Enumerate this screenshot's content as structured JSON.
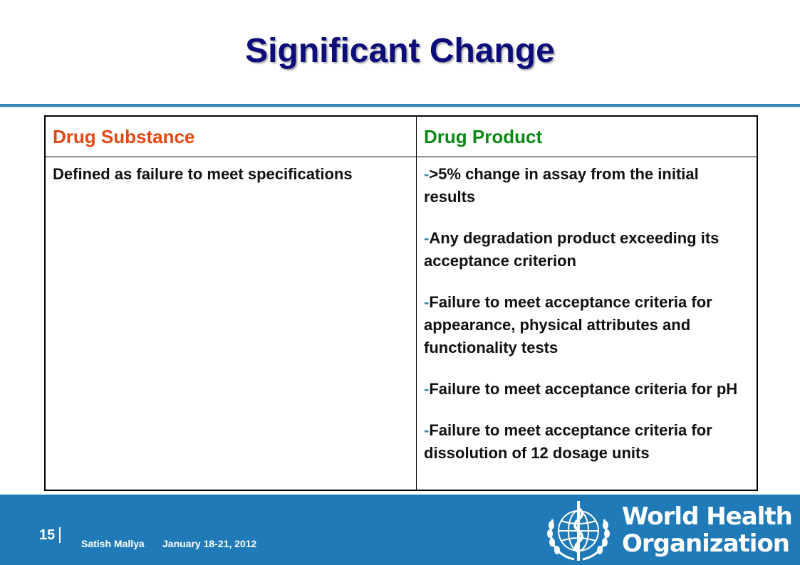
{
  "slide": {
    "title": "Significant Change"
  },
  "table": {
    "headers": {
      "substance": "Drug Substance",
      "product": "Drug Product"
    },
    "substance_cell": "Defined as failure to meet specifications",
    "product_items": [
      {
        "dash": "-",
        "text": ">5% change in assay from the initial results"
      },
      {
        "dash": "-",
        "text": "Any degradation product exceeding its acceptance criterion"
      },
      {
        "dash": "-",
        "text": "Failure to meet acceptance criteria for appearance, physical attributes and functionality tests"
      },
      {
        "dash": "-",
        "text": "Failure to meet acceptance criteria for pH"
      },
      {
        "dash": "-",
        "text": "Failure to meet acceptance criteria for dissolution of 12 dosage units"
      }
    ]
  },
  "footer": {
    "page_number": "15",
    "author": "Satish Mallya",
    "date": "January 18-21, 2012",
    "org_line1": "World Health",
    "org_line2": "Organization",
    "background_color": "#1f7ab7"
  },
  "colors": {
    "title": "#0c0c7a",
    "substance_header": "#e84712",
    "product_header": "#0a8a12"
  }
}
